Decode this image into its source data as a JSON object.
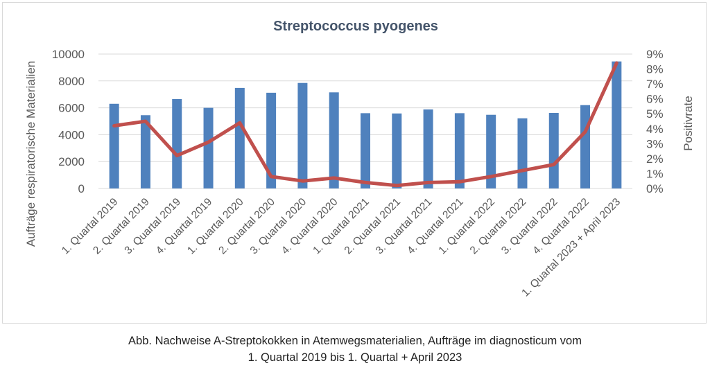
{
  "chart_data": {
    "type": "bar",
    "title": "Streptococcus pyogenes",
    "ylabel": "Aufträge respiratorische Materialien",
    "y2label": "Positivrate",
    "ylim": [
      0,
      10000
    ],
    "y2lim": [
      0,
      9
    ],
    "yticks": [
      "0",
      "2000",
      "4000",
      "6000",
      "8000",
      "10000"
    ],
    "y2ticks": [
      "0%",
      "1%",
      "2%",
      "3%",
      "4%",
      "5%",
      "6%",
      "7%",
      "8%",
      "9%"
    ],
    "categories": [
      "1. Quartal 2019",
      "2. Quartal 2019",
      "3. Quartal 2019",
      "4. Quartal 2019",
      "1. Quartal 2020",
      "2. Quartal 2020",
      "3. Quartal 2020",
      "4. Quartal 2020",
      "1. Quartal 2021",
      "2. Quartal 2021",
      "3. Quartal 2021",
      "4. Quartal 2021",
      "1. Quartal 2022",
      "2. Quartal 2022",
      "3. Quartal 2022",
      "4. Quartal 2022",
      "1. Quartal 2023 + April 2023"
    ],
    "series": [
      {
        "type": "bar",
        "axis": "left",
        "color": "#4f81bd",
        "values": [
          6300,
          5450,
          6650,
          6000,
          7480,
          7120,
          7850,
          7150,
          5600,
          5580,
          5880,
          5600,
          5480,
          5220,
          5620,
          6200,
          9450
        ]
      },
      {
        "type": "line",
        "axis": "right",
        "color": "#c0504d",
        "values": [
          4.2,
          4.5,
          2.2,
          3.1,
          4.4,
          0.8,
          0.5,
          0.7,
          0.4,
          0.2,
          0.4,
          0.45,
          0.8,
          1.2,
          1.6,
          3.8,
          8.4
        ]
      }
    ],
    "grid": true,
    "legend": "none"
  },
  "caption": {
    "line1": "Abb. Nachweise A-Streptokokken in Atemwegsmaterialien, Aufträge im diagnosticum vom",
    "line2": "1. Quartal 2019 bis 1. Quartal + April 2023"
  }
}
